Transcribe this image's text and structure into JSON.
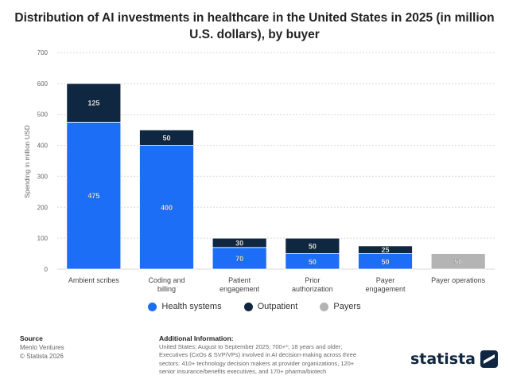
{
  "title_lines": [
    "Distribution of AI investments in healthcare in the United States in 2025 (in million",
    "U.S. dollars), by buyer"
  ],
  "colors": {
    "health_systems": "#1b6ef5",
    "outpatient": "#0f2741",
    "payers": "#b4b4b4",
    "grid": "#d9d9d9"
  },
  "chart_data": {
    "type": "bar",
    "stacked": true,
    "title": "Distribution of AI investments in healthcare in the United States in 2025 (in million U.S. dollars), by buyer",
    "ylabel": "Spending in million USD",
    "xlabel": "",
    "ylim": [
      0,
      700
    ],
    "yticks": [
      0,
      100,
      200,
      300,
      400,
      500,
      600,
      700
    ],
    "grid": true,
    "legend_position": "bottom",
    "categories": [
      "Ambient scribes",
      "Coding and billing",
      "Patient engagement",
      "Prior authorization",
      "Payer engagement",
      "Payer operations"
    ],
    "category_lines": [
      [
        "Ambient scribes"
      ],
      [
        "Coding and",
        "billing"
      ],
      [
        "Patient",
        "engagement"
      ],
      [
        "Prior",
        "authorization"
      ],
      [
        "Payer",
        "engagement"
      ],
      [
        "Payer operations"
      ]
    ],
    "series": [
      {
        "name": "Health systems",
        "color": "#1b6ef5",
        "values": [
          475,
          400,
          70,
          50,
          50,
          null
        ]
      },
      {
        "name": "Outpatient",
        "color": "#0f2741",
        "values": [
          125,
          50,
          30,
          50,
          25,
          null
        ]
      },
      {
        "name": "Payers",
        "color": "#b4b4b4",
        "values": [
          null,
          null,
          null,
          null,
          null,
          50
        ]
      }
    ]
  },
  "footer": {
    "source_heading": "Source",
    "source_lines": [
      "Menlo Ventures",
      "© Statista 2026"
    ],
    "info_heading": "Additional Information:",
    "info_lines": [
      "United States; August to September 2025; 700+*; 18 years and older;",
      "Executives (CxOs & SVP/VPs) involved in AI decision-making across three",
      "sectors: 410+ technology decision makers at provider organizations, 120+",
      "senior insurance/benefits executives, and 170+ pharma/biotech"
    ]
  },
  "brand": {
    "name": "statista",
    "icon": "statista-logo-icon"
  }
}
